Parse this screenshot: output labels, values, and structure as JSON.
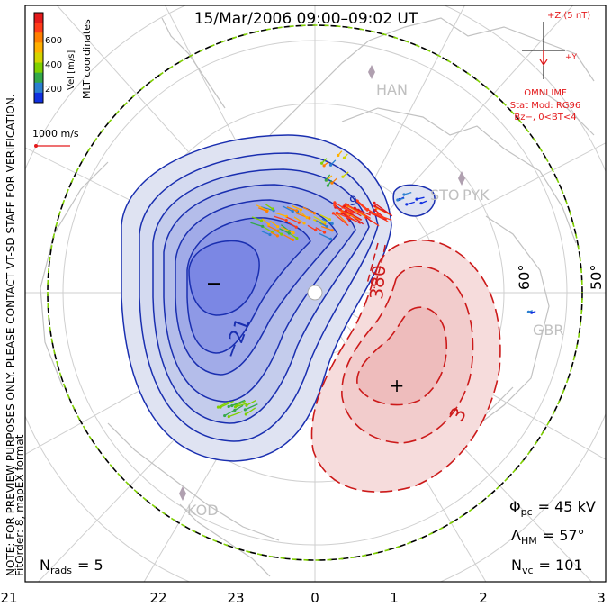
{
  "title": "15/Mar/2006  09:00–09:02  UT",
  "color_scale": {
    "unit_label": "Vel [m/s]",
    "ticks": [
      "600",
      "400",
      "200"
    ],
    "colors": [
      "#e41a1c",
      "#ff3b1a",
      "#ff7f00",
      "#ffb000",
      "#d4d400",
      "#7fd000",
      "#33a84a",
      "#2a7fd0",
      "#1030e0"
    ]
  },
  "coordinates_label": "MLT coordinates",
  "vector_scale": {
    "label": "1000 m/s",
    "color": "#e41a1c"
  },
  "imf": {
    "z_label": "+Z (5 nT)",
    "y_label": "+Y",
    "source": "OMNI IMF",
    "stat_mod": "Stat Mod: RG96",
    "condition": "Bz−, 0<BT<4",
    "color": "#e41a1c"
  },
  "stations": [
    "HAN",
    "STO",
    "PYK",
    "GBR",
    "KOD"
  ],
  "latitude_labels": [
    "60°",
    "50°"
  ],
  "contours": {
    "min_label": "−",
    "max_label": "+",
    "neg_value_label": "−21",
    "pos_value_label": "3",
    "small_pos_label": "380",
    "small_neg_label": "9",
    "neg_color": "#1a2fb0",
    "pos_color": "#cc1a1a"
  },
  "notes": {
    "preview": "NOTE: FOR PREVIEW PURPOSES ONLY. PLEASE CONTACT VT-SD STAFF FOR VERIFICATION.",
    "fit": "FitOrder: 8, mapEX format"
  },
  "stats": {
    "n_rads_label": "N",
    "n_rads_sub": "rads",
    "n_rads_value": "= 5",
    "phi_label": "Φ",
    "phi_sub": "pc",
    "phi_value": "= 45 kV",
    "lambda_label": "Λ",
    "lambda_sub": "HM",
    "lambda_value": "= 57°",
    "nvc_label": "N",
    "nvc_sub": "vc",
    "nvc_value": "= 101"
  },
  "mlt_axis": [
    "21",
    "22",
    "23",
    "0",
    "1",
    "2",
    "3"
  ]
}
